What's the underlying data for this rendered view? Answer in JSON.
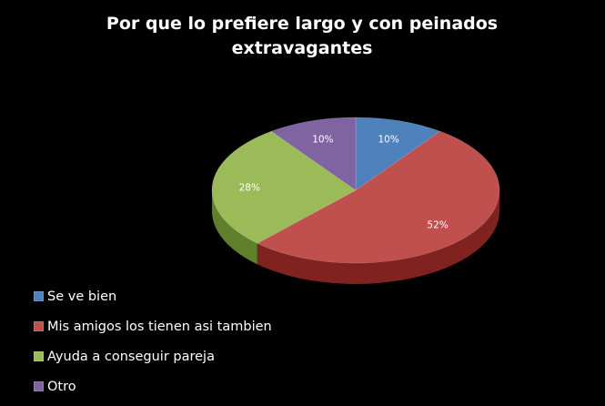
{
  "chart_data": {
    "type": "pie",
    "title_line1": "Por que lo prefiere largo y con peinados",
    "title_line2": "extravagantes",
    "categories": [
      "Se ve bien",
      "Mis amigos los tienen asi tambien",
      "Ayuda a conseguir pareja",
      "Otro"
    ],
    "values": [
      10,
      52,
      28,
      10
    ],
    "value_labels": [
      "10%",
      "52%",
      "28%",
      "10%"
    ],
    "colors": [
      "#4f81bd",
      "#c0504d",
      "#9bbb59",
      "#8064a2"
    ],
    "side_colors": [
      "#2c5a8f",
      "#7f2220",
      "#5f7f2a",
      "#4f3a70"
    ],
    "legend_position": "bottom-left",
    "three_d": true
  }
}
